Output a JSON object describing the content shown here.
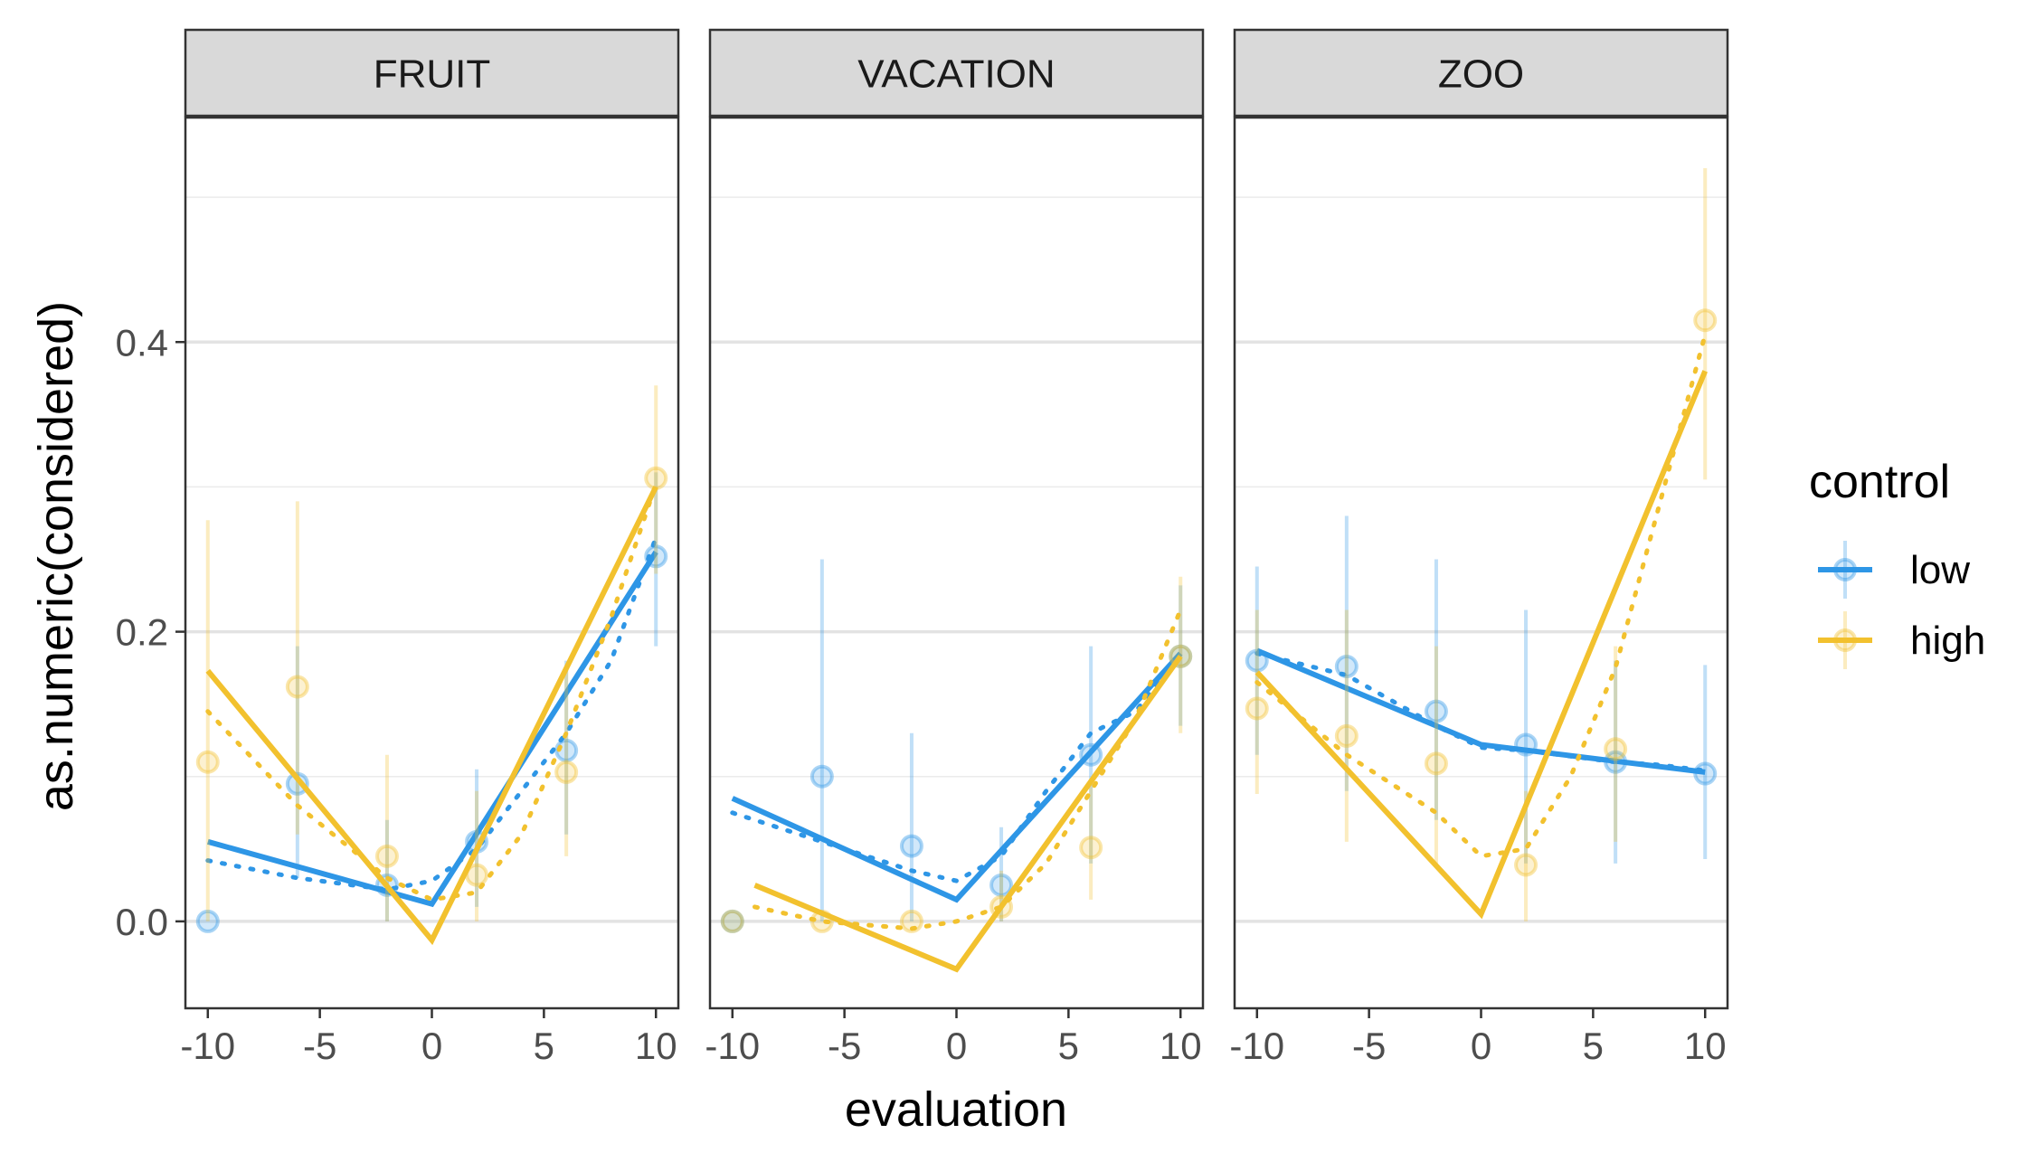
{
  "chart_data": {
    "type": "line",
    "xlabel": "evaluation",
    "ylabel": "as.numeric(considered)",
    "xlim": [
      -11,
      11
    ],
    "ylim": [
      -0.06,
      0.555
    ],
    "x_ticks": [
      -10,
      -5,
      0,
      5,
      10
    ],
    "x_tick_labels": [
      "-10",
      "-5",
      "0",
      "5",
      "10"
    ],
    "y_ticks": [
      0.0,
      0.2,
      0.4
    ],
    "y_tick_labels": [
      "0.0",
      "0.2",
      "0.4"
    ],
    "y_minor_ticks": [
      0.1,
      0.3,
      0.5
    ],
    "grid": true,
    "legend": {
      "title": "control",
      "position": "right",
      "entries": [
        {
          "key": "low",
          "label": "low",
          "color": "#2E96E6"
        },
        {
          "key": "high",
          "label": "high",
          "color": "#F2C12E"
        }
      ]
    },
    "panels": [
      {
        "name": "FRUIT",
        "series": [
          {
            "key": "low",
            "points": [
              {
                "x": -10,
                "y": 0.0,
                "lo": 0.0,
                "hi": 0.0
              },
              {
                "x": -6,
                "y": 0.095,
                "lo": 0.03,
                "hi": 0.19
              },
              {
                "x": -2,
                "y": 0.025,
                "lo": 0.0,
                "hi": 0.07
              },
              {
                "x": 2,
                "y": 0.055,
                "lo": 0.01,
                "hi": 0.105
              },
              {
                "x": 6,
                "y": 0.118,
                "lo": 0.06,
                "hi": 0.18
              },
              {
                "x": 10,
                "y": 0.252,
                "lo": 0.19,
                "hi": 0.31
              }
            ],
            "fit_solid": [
              [
                -10,
                0.055
              ],
              [
                0,
                0.012
              ],
              [
                10,
                0.255
              ]
            ],
            "fit_dotted": [
              [
                -10,
                0.042
              ],
              [
                -6,
                0.03
              ],
              [
                -2,
                0.022
              ],
              [
                0,
                0.028
              ],
              [
                2,
                0.05
              ],
              [
                4,
                0.09
              ],
              [
                6,
                0.13
              ],
              [
                8,
                0.18
              ],
              [
                10,
                0.265
              ]
            ]
          },
          {
            "key": "high",
            "points": [
              {
                "x": -10,
                "y": 0.11,
                "lo": 0.0,
                "hi": 0.277
              },
              {
                "x": -6,
                "y": 0.162,
                "lo": 0.06,
                "hi": 0.29
              },
              {
                "x": -2,
                "y": 0.045,
                "lo": 0.0,
                "hi": 0.115
              },
              {
                "x": 2,
                "y": 0.032,
                "lo": 0.0,
                "hi": 0.09
              },
              {
                "x": 6,
                "y": 0.103,
                "lo": 0.045,
                "hi": 0.175
              },
              {
                "x": 10,
                "y": 0.306,
                "lo": 0.24,
                "hi": 0.37
              }
            ],
            "fit_solid": [
              [
                -10,
                0.173
              ],
              [
                0,
                -0.013
              ],
              [
                10,
                0.3
              ]
            ],
            "fit_dotted": [
              [
                -10,
                0.145
              ],
              [
                -6,
                0.08
              ],
              [
                -2,
                0.03
              ],
              [
                0,
                0.015
              ],
              [
                2,
                0.02
              ],
              [
                4,
                0.06
              ],
              [
                6,
                0.13
              ],
              [
                8,
                0.21
              ],
              [
                10,
                0.302
              ]
            ]
          }
        ]
      },
      {
        "name": "VACATION",
        "series": [
          {
            "key": "low",
            "points": [
              {
                "x": -10,
                "y": 0.0,
                "lo": 0.0,
                "hi": 0.0
              },
              {
                "x": -6,
                "y": 0.1,
                "lo": 0.0,
                "hi": 0.25
              },
              {
                "x": -2,
                "y": 0.052,
                "lo": 0.0,
                "hi": 0.13
              },
              {
                "x": 2,
                "y": 0.025,
                "lo": 0.0,
                "hi": 0.065
              },
              {
                "x": 6,
                "y": 0.115,
                "lo": 0.04,
                "hi": 0.19
              },
              {
                "x": 10,
                "y": 0.183,
                "lo": 0.135,
                "hi": 0.232
              }
            ],
            "fit_solid": [
              [
                -10,
                0.085
              ],
              [
                0,
                0.015
              ],
              [
                10,
                0.185
              ]
            ],
            "fit_dotted": [
              [
                -10,
                0.075
              ],
              [
                -6,
                0.055
              ],
              [
                -2,
                0.035
              ],
              [
                0,
                0.028
              ],
              [
                2,
                0.045
              ],
              [
                4,
                0.09
              ],
              [
                6,
                0.13
              ],
              [
                8,
                0.145
              ],
              [
                10,
                0.185
              ]
            ]
          },
          {
            "key": "high",
            "points": [
              {
                "x": -10,
                "y": 0.0,
                "lo": 0.0,
                "hi": 0.0
              },
              {
                "x": -6,
                "y": 0.0,
                "lo": 0.0,
                "hi": 0.0
              },
              {
                "x": -2,
                "y": 0.0,
                "lo": 0.0,
                "hi": 0.0
              },
              {
                "x": 2,
                "y": 0.01,
                "lo": 0.0,
                "hi": 0.035
              },
              {
                "x": 6,
                "y": 0.051,
                "lo": 0.015,
                "hi": 0.095
              },
              {
                "x": 10,
                "y": 0.183,
                "lo": 0.13,
                "hi": 0.238
              }
            ],
            "fit_solid": [
              [
                -9,
                0.025
              ],
              [
                0,
                -0.033
              ],
              [
                10,
                0.183
              ]
            ],
            "fit_dotted": [
              [
                -9,
                0.01
              ],
              [
                -6,
                0.0
              ],
              [
                -2,
                -0.005
              ],
              [
                0,
                0.0
              ],
              [
                2,
                0.01
              ],
              [
                4,
                0.04
              ],
              [
                6,
                0.09
              ],
              [
                8,
                0.14
              ],
              [
                10,
                0.215
              ]
            ]
          }
        ]
      },
      {
        "name": "ZOO",
        "series": [
          {
            "key": "low",
            "points": [
              {
                "x": -10,
                "y": 0.18,
                "lo": 0.115,
                "hi": 0.245
              },
              {
                "x": -6,
                "y": 0.176,
                "lo": 0.09,
                "hi": 0.28
              },
              {
                "x": -2,
                "y": 0.145,
                "lo": 0.07,
                "hi": 0.25
              },
              {
                "x": 2,
                "y": 0.122,
                "lo": 0.04,
                "hi": 0.215
              },
              {
                "x": 6,
                "y": 0.11,
                "lo": 0.04,
                "hi": 0.18
              },
              {
                "x": 10,
                "y": 0.102,
                "lo": 0.043,
                "hi": 0.177
              }
            ],
            "fit_solid": [
              [
                -10,
                0.187
              ],
              [
                0,
                0.122
              ],
              [
                10,
                0.103
              ]
            ],
            "fit_dotted": [
              [
                -10,
                0.185
              ],
              [
                -6,
                0.17
              ],
              [
                -2,
                0.135
              ],
              [
                0,
                0.12
              ],
              [
                2,
                0.118
              ],
              [
                4,
                0.114
              ],
              [
                6,
                0.11
              ],
              [
                8,
                0.108
              ],
              [
                10,
                0.104
              ]
            ]
          },
          {
            "key": "high",
            "points": [
              {
                "x": -10,
                "y": 0.147,
                "lo": 0.088,
                "hi": 0.215
              },
              {
                "x": -6,
                "y": 0.128,
                "lo": 0.055,
                "hi": 0.215
              },
              {
                "x": -2,
                "y": 0.109,
                "lo": 0.04,
                "hi": 0.19
              },
              {
                "x": 2,
                "y": 0.039,
                "lo": 0.0,
                "hi": 0.09
              },
              {
                "x": 6,
                "y": 0.119,
                "lo": 0.055,
                "hi": 0.19
              },
              {
                "x": 10,
                "y": 0.415,
                "lo": 0.305,
                "hi": 0.52
              }
            ],
            "fit_solid": [
              [
                -10,
                0.172
              ],
              [
                0,
                0.005
              ],
              [
                10,
                0.38
              ]
            ],
            "fit_dotted": [
              [
                -10,
                0.165
              ],
              [
                -6,
                0.115
              ],
              [
                -2,
                0.075
              ],
              [
                0,
                0.045
              ],
              [
                2,
                0.05
              ],
              [
                4,
                0.1
              ],
              [
                6,
                0.175
              ],
              [
                8,
                0.29
              ],
              [
                10,
                0.405
              ]
            ]
          }
        ]
      }
    ]
  }
}
